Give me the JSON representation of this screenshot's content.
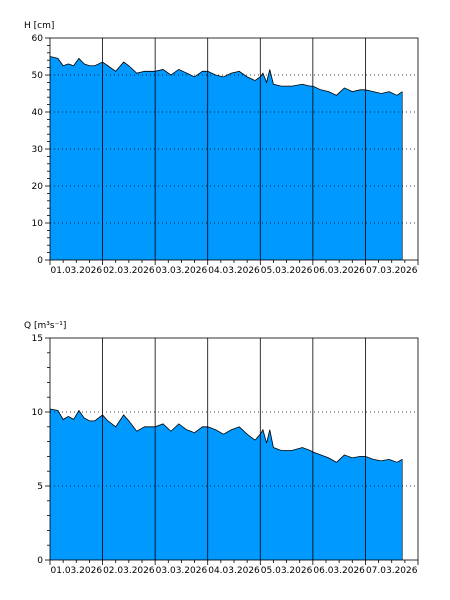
{
  "chart_data": [
    {
      "type": "area",
      "ylabel": "H [cm]",
      "ylim": [
        0,
        60
      ],
      "yticks": [
        0,
        10,
        20,
        30,
        40,
        50,
        60
      ],
      "xlim": [
        "01.03.2026",
        "08.03.2026"
      ],
      "xticks": [
        "01.03.2026",
        "02.03.2026",
        "03.03.2026",
        "04.03.2026",
        "05.03.2026",
        "06.03.2026",
        "07.03.2026"
      ],
      "fill_color": "#0099ff",
      "line_color": "#000000",
      "grid": "dotted horizontal, solid vertical day lines",
      "series": [
        {
          "x": [
            0.0,
            0.15,
            0.25,
            0.35,
            0.45,
            0.55,
            0.65,
            0.75,
            0.85,
            1.0,
            1.1,
            1.25,
            1.4,
            1.5,
            1.65,
            1.8,
            2.0,
            2.15,
            2.3,
            2.45,
            2.6,
            2.75,
            2.9,
            3.0,
            3.15,
            3.3,
            3.45,
            3.6,
            3.75,
            3.9,
            4.0,
            4.05,
            4.12,
            4.18,
            4.25,
            4.4,
            4.6,
            4.8,
            4.95,
            5.0,
            5.15,
            5.3,
            5.45,
            5.6,
            5.75,
            5.9,
            6.0,
            6.15,
            6.3,
            6.45,
            6.6,
            6.7
          ],
          "values": [
            55,
            54.5,
            52.5,
            53,
            52.5,
            54.5,
            53,
            52.5,
            52.5,
            53.5,
            52.5,
            51,
            53.5,
            52.5,
            50.5,
            51,
            51,
            51.5,
            50,
            51.5,
            50.5,
            49.5,
            51,
            51,
            50,
            49.5,
            50.5,
            51,
            49.5,
            48.5,
            49.5,
            50.5,
            48,
            51.5,
            47.5,
            47,
            47,
            47.5,
            47,
            47,
            46,
            45.5,
            44.5,
            46.5,
            45.5,
            46,
            46,
            45.5,
            45,
            45.5,
            44.5,
            45.5
          ]
        }
      ]
    },
    {
      "type": "area",
      "ylabel": "Q [m³s⁻¹]",
      "ylim": [
        0,
        15
      ],
      "yticks": [
        0,
        5,
        10,
        15
      ],
      "xlim": [
        "01.03.2026",
        "08.03.2026"
      ],
      "xticks": [
        "01.03.2026",
        "02.03.2026",
        "03.03.2026",
        "04.03.2026",
        "05.03.2026",
        "06.03.2026",
        "07.03.2026"
      ],
      "fill_color": "#0099ff",
      "line_color": "#000000",
      "grid": "dotted horizontal, solid vertical day lines",
      "series": [
        {
          "x": [
            0.0,
            0.15,
            0.25,
            0.35,
            0.45,
            0.55,
            0.65,
            0.75,
            0.85,
            1.0,
            1.1,
            1.25,
            1.4,
            1.5,
            1.65,
            1.8,
            2.0,
            2.15,
            2.3,
            2.45,
            2.6,
            2.75,
            2.9,
            3.0,
            3.15,
            3.3,
            3.45,
            3.6,
            3.75,
            3.9,
            4.0,
            4.05,
            4.12,
            4.18,
            4.25,
            4.4,
            4.6,
            4.8,
            4.95,
            5.0,
            5.15,
            5.3,
            5.45,
            5.6,
            5.75,
            5.9,
            6.0,
            6.15,
            6.3,
            6.45,
            6.6,
            6.7
          ],
          "values": [
            10.2,
            10.1,
            9.5,
            9.7,
            9.5,
            10.1,
            9.6,
            9.4,
            9.4,
            9.8,
            9.4,
            9.0,
            9.8,
            9.4,
            8.7,
            9.0,
            9.0,
            9.2,
            8.7,
            9.2,
            8.8,
            8.6,
            9.0,
            9.0,
            8.8,
            8.5,
            8.8,
            9.0,
            8.5,
            8.1,
            8.5,
            8.8,
            7.9,
            8.8,
            7.6,
            7.4,
            7.4,
            7.6,
            7.4,
            7.3,
            7.1,
            6.9,
            6.6,
            7.1,
            6.9,
            7.0,
            7.0,
            6.8,
            6.7,
            6.8,
            6.6,
            6.8
          ]
        }
      ]
    }
  ]
}
